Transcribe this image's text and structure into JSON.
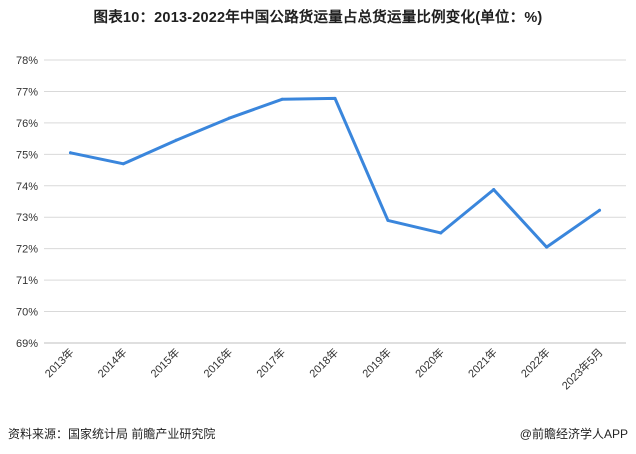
{
  "title": "图表10：2013-2022年中国公路货运量占总货运量比例变化(单位：%)",
  "footer": {
    "source": "资料来源：国家统计局 前瞻产业研究院",
    "brand": "@前瞻经济学人APP"
  },
  "chart_data": {
    "type": "line",
    "title": "图表10：2013-2022年中国公路货运量占总货运量比例变化(单位：%)",
    "xlabel": "",
    "ylabel": "",
    "categories": [
      "2013年",
      "2014年",
      "2015年",
      "2016年",
      "2017年",
      "2018年",
      "2019年",
      "2020年",
      "2021年",
      "2022年",
      "2023年5月"
    ],
    "series": [
      {
        "values": [
          75.05,
          74.7,
          75.45,
          76.15,
          76.75,
          76.78,
          72.9,
          72.5,
          73.88,
          72.05,
          73.22
        ]
      }
    ],
    "ylim": [
      69,
      78
    ],
    "yticks": [
      69,
      70,
      71,
      72,
      73,
      74,
      75,
      76,
      77,
      78
    ],
    "ytick_labels": [
      "69%",
      "70%",
      "71%",
      "72%",
      "73%",
      "74%",
      "75%",
      "76%",
      "77%",
      "78%"
    ],
    "grid": true,
    "legend": "none",
    "line_color": "#3a86dc"
  }
}
